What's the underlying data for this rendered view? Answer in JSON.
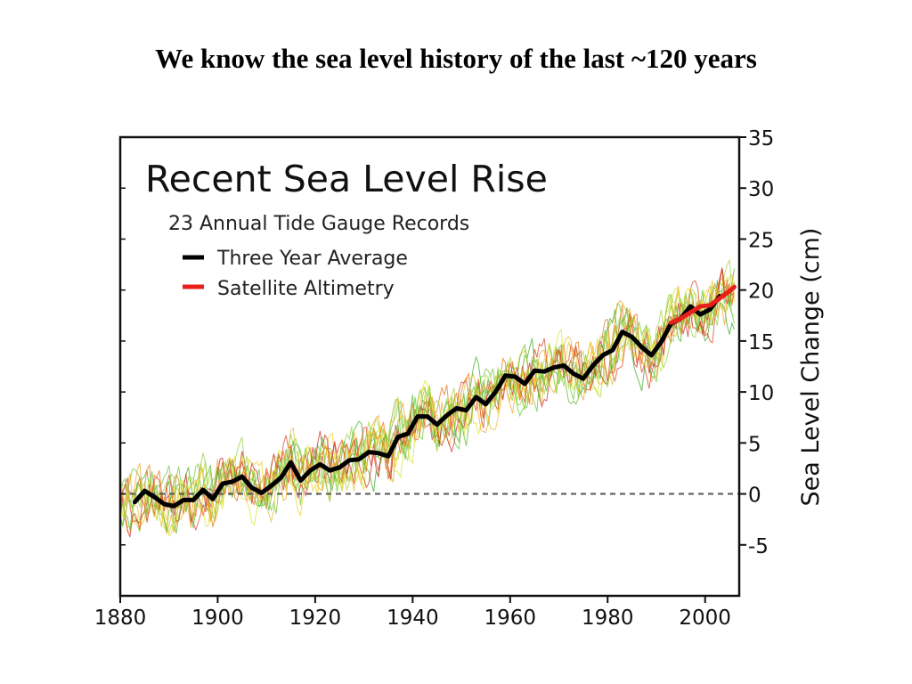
{
  "slide": {
    "title": "We know the sea level history of  the last ~120 years"
  },
  "chart_data": {
    "type": "line",
    "title": "Recent Sea Level Rise",
    "subtitle": "23 Annual Tide Gauge Records",
    "xlabel": "",
    "ylabel": "Sea Level Change (cm)",
    "xlim": [
      1880,
      2007
    ],
    "ylim": [
      -10,
      35
    ],
    "x_ticks": [
      1880,
      1900,
      1920,
      1940,
      1960,
      1980,
      2000
    ],
    "y_ticks": [
      35,
      30,
      25,
      20,
      15,
      10,
      5,
      0,
      -5
    ],
    "reference_line": {
      "y": 0,
      "style": "dashed",
      "color": "#555555"
    },
    "legend_position": "top-left",
    "legend": [
      {
        "label": "Three Year Average",
        "color": "#000000"
      },
      {
        "label": "Satellite Altimetry",
        "color": "#e8201a"
      }
    ],
    "series": [
      {
        "name": "Three Year Average",
        "color": "#000000",
        "x": [
          1883,
          1885,
          1887,
          1889,
          1891,
          1893,
          1895,
          1897,
          1899,
          1901,
          1903,
          1905,
          1907,
          1909,
          1911,
          1913,
          1915,
          1917,
          1919,
          1921,
          1923,
          1925,
          1927,
          1929,
          1931,
          1933,
          1935,
          1937,
          1939,
          1941,
          1943,
          1945,
          1947,
          1949,
          1951,
          1953,
          1955,
          1957,
          1959,
          1961,
          1963,
          1965,
          1967,
          1969,
          1971,
          1973,
          1975,
          1977,
          1979,
          1981,
          1983,
          1985,
          1987,
          1989,
          1991,
          1993,
          1995,
          1997,
          1999,
          2001,
          2003
        ],
        "values": [
          -0.8,
          0.3,
          -0.3,
          -1.0,
          -1.2,
          -0.6,
          -0.6,
          0.4,
          -0.5,
          1.0,
          1.2,
          1.7,
          0.6,
          0.1,
          0.8,
          1.6,
          3.1,
          1.3,
          2.3,
          2.9,
          2.3,
          2.6,
          3.3,
          3.4,
          4.1,
          4.0,
          3.7,
          5.6,
          5.9,
          7.6,
          7.6,
          6.8,
          7.7,
          8.4,
          8.2,
          9.5,
          8.8,
          10.0,
          11.6,
          11.5,
          10.8,
          12.1,
          12.0,
          12.4,
          12.6,
          11.8,
          11.3,
          12.6,
          13.6,
          14.1,
          15.9,
          15.4,
          14.4,
          13.6,
          14.9,
          16.7,
          17.2,
          18.4,
          17.6,
          18.1,
          19.4
        ]
      },
      {
        "name": "Satellite Altimetry",
        "color": "#e8201a",
        "x": [
          1993,
          1995,
          1997,
          1999,
          2001,
          2003,
          2005,
          2006
        ],
        "values": [
          16.8,
          17.2,
          17.8,
          18.4,
          18.5,
          19.2,
          19.9,
          20.3
        ]
      }
    ],
    "tide_gauge_colors": [
      "#3fae2a",
      "#6cc83a",
      "#a8d63a",
      "#d6e82a",
      "#f0d020",
      "#f5a623",
      "#e8741a",
      "#d9452a",
      "#c8312a",
      "#8fd44a",
      "#5fb830",
      "#e0c035"
    ]
  }
}
